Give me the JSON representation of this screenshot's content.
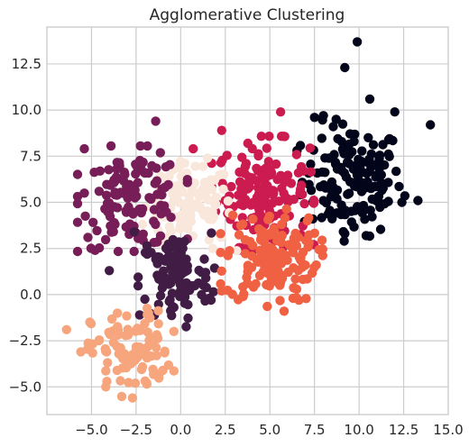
{
  "chart_data": {
    "type": "scatter",
    "title": "Agglomerative Clustering",
    "xlabel": "",
    "ylabel": "",
    "xlim": [
      -7.5,
      15.0
    ],
    "ylim": [
      -6.5,
      14.5
    ],
    "xticks": [
      -5.0,
      -2.5,
      0.0,
      2.5,
      5.0,
      7.5,
      10.0,
      12.5,
      15.0
    ],
    "yticks": [
      -5.0,
      -2.5,
      0.0,
      2.5,
      5.0,
      7.5,
      10.0,
      12.5
    ],
    "xtick_labels": [
      "−5.0",
      "−2.5",
      "0.0",
      "2.5",
      "5.0",
      "7.5",
      "10.0",
      "12.5",
      "15.0"
    ],
    "ytick_labels": [
      "−5.0",
      "−2.5",
      "0.0",
      "2.5",
      "5.0",
      "7.5",
      "10.0",
      "12.5"
    ],
    "grid": true,
    "clusters": [
      {
        "color": "#03051a",
        "center": [
          9.6,
          6.2
        ],
        "spread": [
          1.4,
          1.5
        ],
        "count": 150,
        "outliers": [
          [
            9.9,
            13.7
          ],
          [
            9.2,
            12.3
          ],
          [
            10.6,
            10.6
          ],
          [
            12.0,
            9.9
          ],
          [
            14.0,
            9.2
          ],
          [
            13.3,
            5.1
          ],
          [
            12.4,
            5.0
          ],
          [
            10.4,
            3.2
          ],
          [
            9.2,
            3.3
          ],
          [
            7.5,
            9.6
          ],
          [
            8.0,
            9.7
          ]
        ]
      },
      {
        "color": "#cb1b4f",
        "center": [
          4.6,
          5.5
        ],
        "spread": [
          1.3,
          1.4
        ],
        "count": 160,
        "outliers": [
          [
            5.6,
            9.9
          ],
          [
            2.3,
            8.9
          ],
          [
            0.7,
            7.9
          ],
          [
            3.7,
            2.6
          ],
          [
            6.6,
            6.6
          ]
        ]
      },
      {
        "color": "#fae7dc",
        "center": [
          0.5,
          4.8
        ],
        "spread": [
          1.2,
          1.1
        ],
        "count": 110,
        "outliers": [
          [
            1.5,
            7.4
          ],
          [
            -0.8,
            3.0
          ],
          [
            1.8,
            2.5
          ]
        ]
      },
      {
        "color": "#771d57",
        "center": [
          -2.7,
          5.2
        ],
        "spread": [
          1.4,
          1.3
        ],
        "count": 130,
        "outliers": [
          [
            -5.4,
            7.9
          ],
          [
            -1.4,
            9.4
          ],
          [
            -5.4,
            5.5
          ],
          [
            -4.8,
            2.4
          ],
          [
            -5.2,
            3.1
          ],
          [
            -4.0,
            4.5
          ]
        ]
      },
      {
        "color": "#411c45",
        "center": [
          -0.3,
          0.9
        ],
        "spread": [
          1.0,
          1.2
        ],
        "count": 105,
        "outliers": [
          [
            -2.6,
            3.4
          ],
          [
            -4.0,
            1.3
          ],
          [
            1.7,
            -0.3
          ],
          [
            1.4,
            1.2
          ],
          [
            -2.3,
            -1.1
          ]
        ]
      },
      {
        "color": "#f06043",
        "center": [
          5.1,
          2.0
        ],
        "spread": [
          1.3,
          1.2
        ],
        "count": 140,
        "outliers": [
          [
            2.3,
            0.2
          ],
          [
            3.5,
            -0.1
          ],
          [
            6.3,
            -0.2
          ],
          [
            5.8,
            -0.9
          ],
          [
            7.6,
            1.6
          ],
          [
            7.1,
            4.0
          ],
          [
            7.2,
            2.8
          ]
        ]
      },
      {
        "color": "#f6a57d",
        "center": [
          -2.8,
          -3.1
        ],
        "spread": [
          1.1,
          1.1
        ],
        "count": 95,
        "outliers": [
          [
            -6.4,
            -1.9
          ],
          [
            -1.8,
            -1.0
          ],
          [
            -1.0,
            -4.1
          ],
          [
            -2.7,
            -5.6
          ],
          [
            -4.2,
            -5.0
          ],
          [
            -5.6,
            -3.1
          ]
        ]
      }
    ]
  }
}
